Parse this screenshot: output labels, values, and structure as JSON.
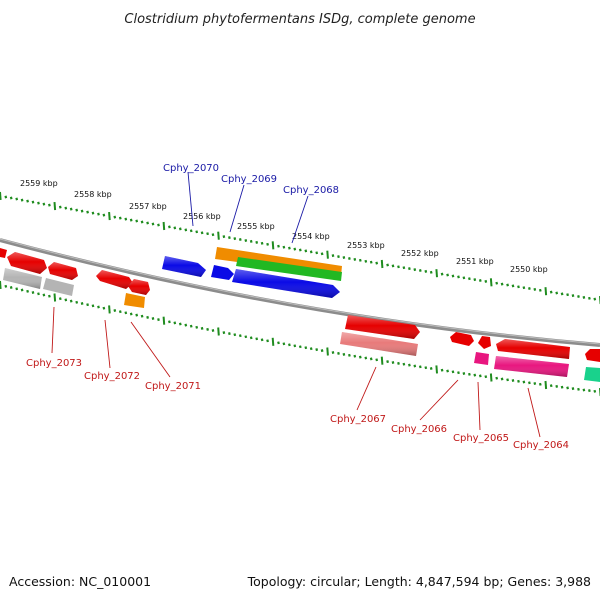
{
  "title": "Clostridium phytofermentans ISDg, complete genome",
  "footer": {
    "accession": "Accession: NC_010001",
    "summary": "Topology: circular; Length: 4,847,594 bp; Genes: 3,988"
  },
  "scale_labels": [
    "2559 kbp",
    "2558 kbp",
    "2557 kbp",
    "2556 kbp",
    "2555 kbp",
    "2554 kbp",
    "2553 kbp",
    "2552 kbp",
    "2551 kbp",
    "2550 kbp"
  ],
  "gene_labels_top": [
    "Cphy_2070",
    "Cphy_2069",
    "Cphy_2068"
  ],
  "gene_labels_bottom": [
    "Cphy_2073",
    "Cphy_2072",
    "Cphy_2071",
    "Cphy_2067",
    "Cphy_2066",
    "Cphy_2065",
    "Cphy_2064"
  ],
  "colors": {
    "backbone": "#8c8c8c",
    "tick": "#1f8c1f",
    "gene_red": "#e60000",
    "gene_blue": "#0a0ae6",
    "gene_orange": "#f08c00",
    "gene_green": "#22b822",
    "gene_pink": "#e8167f",
    "gene_rose": "#e87a7a",
    "gene_gray": "#b4b4b4",
    "gene_teal": "#19d28c",
    "label_blue": "#1a1aa6",
    "label_red": "#c01818"
  }
}
